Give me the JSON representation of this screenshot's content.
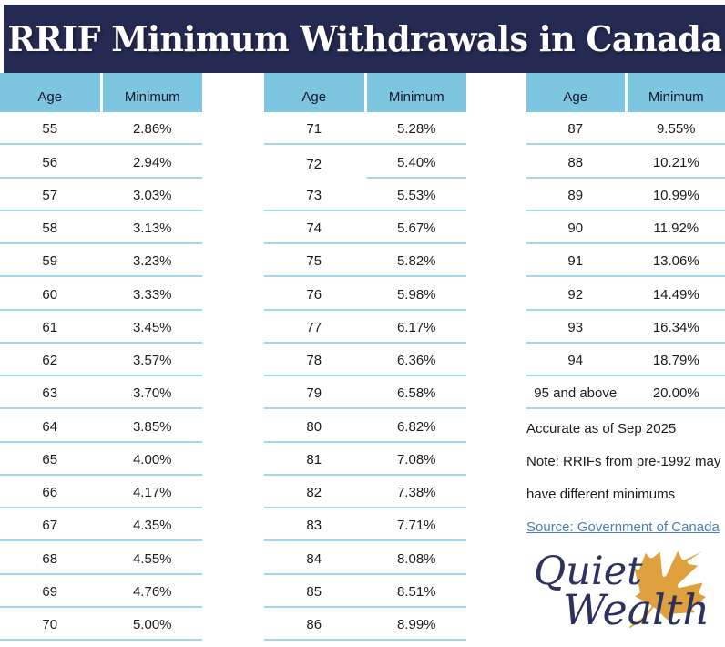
{
  "title": "RRIF Minimum Withdrawals in Canada",
  "headers": {
    "age": "Age",
    "minimum": "Minimum"
  },
  "tables": [
    {
      "rows": [
        {
          "age": "55",
          "min": "2.86%"
        },
        {
          "age": "56",
          "min": "2.94%"
        },
        {
          "age": "57",
          "min": "3.03%"
        },
        {
          "age": "58",
          "min": "3.13%"
        },
        {
          "age": "59",
          "min": "3.23%"
        },
        {
          "age": "60",
          "min": "3.33%"
        },
        {
          "age": "61",
          "min": "3.45%"
        },
        {
          "age": "62",
          "min": "3.57%"
        },
        {
          "age": "63",
          "min": "3.70%"
        },
        {
          "age": "64",
          "min": "3.85%"
        },
        {
          "age": "65",
          "min": "4.00%"
        },
        {
          "age": "66",
          "min": "4.17%"
        },
        {
          "age": "67",
          "min": "4.35%"
        },
        {
          "age": "68",
          "min": "4.55%"
        },
        {
          "age": "69",
          "min": "4.76%"
        },
        {
          "age": "70",
          "min": "5.00%"
        }
      ]
    },
    {
      "rows": [
        {
          "age": "71",
          "min": "5.28%"
        },
        {
          "age": "72",
          "min": "5.40%",
          "partial_underline": true
        },
        {
          "age": "73",
          "min": "5.53%"
        },
        {
          "age": "74",
          "min": "5.67%"
        },
        {
          "age": "75",
          "min": "5.82%"
        },
        {
          "age": "76",
          "min": "5.98%"
        },
        {
          "age": "77",
          "min": "6.17%"
        },
        {
          "age": "78",
          "min": "6.36%"
        },
        {
          "age": "79",
          "min": "6.58%"
        },
        {
          "age": "80",
          "min": "6.82%"
        },
        {
          "age": "81",
          "min": "7.08%"
        },
        {
          "age": "82",
          "min": "7.38%"
        },
        {
          "age": "83",
          "min": "7.71%"
        },
        {
          "age": "84",
          "min": "8.08%"
        },
        {
          "age": "85",
          "min": "8.51%"
        },
        {
          "age": "86",
          "min": "8.99%"
        }
      ]
    },
    {
      "rows": [
        {
          "age": "87",
          "min": "9.55%"
        },
        {
          "age": "88",
          "min": "10.21%"
        },
        {
          "age": "89",
          "min": "10.99%"
        },
        {
          "age": "90",
          "min": "11.92%"
        },
        {
          "age": "91",
          "min": "13.06%"
        },
        {
          "age": "92",
          "min": "14.49%"
        },
        {
          "age": "93",
          "min": "16.34%"
        },
        {
          "age": "94",
          "min": "18.79%"
        },
        {
          "age": "95 and above",
          "min": "20.00%"
        }
      ]
    }
  ],
  "notes": [
    "Accurate as of Sep 2025",
    "Note: RRIFs from pre-1992 may",
    "have different minimums"
  ],
  "source_link": "Source: Government of Canada",
  "logo": {
    "word1": "Quiet",
    "word2": "Wealth"
  },
  "colors": {
    "navy": "#252a52",
    "header_blue": "#7dc6e0",
    "row_underline": "#a3d8ea",
    "link_blue": "#4a7dbd",
    "leaf_gold": "#dfa13d",
    "logo_navy": "#2d3160"
  },
  "chart_data": {
    "type": "table",
    "title": "RRIF Minimum Withdrawals in Canada",
    "columns": [
      "Age",
      "Minimum"
    ],
    "rows": [
      [
        "55",
        "2.86%"
      ],
      [
        "56",
        "2.94%"
      ],
      [
        "57",
        "3.03%"
      ],
      [
        "58",
        "3.13%"
      ],
      [
        "59",
        "3.23%"
      ],
      [
        "60",
        "3.33%"
      ],
      [
        "61",
        "3.45%"
      ],
      [
        "62",
        "3.57%"
      ],
      [
        "63",
        "3.70%"
      ],
      [
        "64",
        "3.85%"
      ],
      [
        "65",
        "4.00%"
      ],
      [
        "66",
        "4.17%"
      ],
      [
        "67",
        "4.35%"
      ],
      [
        "68",
        "4.55%"
      ],
      [
        "69",
        "4.76%"
      ],
      [
        "70",
        "5.00%"
      ],
      [
        "71",
        "5.28%"
      ],
      [
        "72",
        "5.40%"
      ],
      [
        "73",
        "5.53%"
      ],
      [
        "74",
        "5.67%"
      ],
      [
        "75",
        "5.82%"
      ],
      [
        "76",
        "5.98%"
      ],
      [
        "77",
        "6.17%"
      ],
      [
        "78",
        "6.36%"
      ],
      [
        "79",
        "6.58%"
      ],
      [
        "80",
        "6.82%"
      ],
      [
        "81",
        "7.08%"
      ],
      [
        "82",
        "7.38%"
      ],
      [
        "83",
        "7.71%"
      ],
      [
        "84",
        "8.08%"
      ],
      [
        "85",
        "8.51%"
      ],
      [
        "86",
        "8.99%"
      ],
      [
        "87",
        "9.55%"
      ],
      [
        "88",
        "10.21%"
      ],
      [
        "89",
        "10.99%"
      ],
      [
        "90",
        "11.92%"
      ],
      [
        "91",
        "13.06%"
      ],
      [
        "92",
        "14.49%"
      ],
      [
        "93",
        "16.34%"
      ],
      [
        "94",
        "18.79%"
      ],
      [
        "95 and above",
        "20.00%"
      ]
    ],
    "annotations": [
      "Accurate as of Sep 2025",
      "Note: RRIFs from pre-1992 may have different minimums",
      "Source: Government of Canada"
    ],
    "layout": "three side-by-side Age/Minimum tables"
  }
}
